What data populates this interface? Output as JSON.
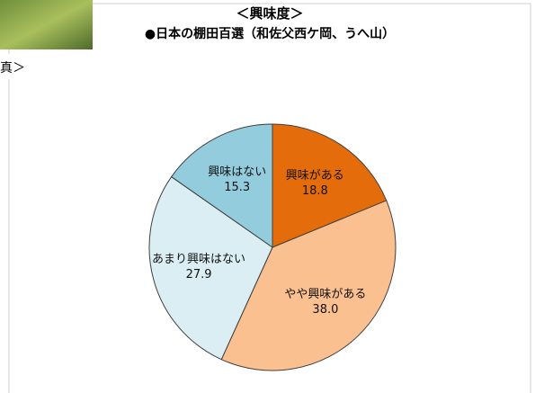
{
  "caption": "真＞",
  "chart_data": {
    "type": "pie",
    "title": "＜興味度＞",
    "subtitle": "●日本の棚田百選（和佐父西ケ岡、うへ山）",
    "categories": [
      "興味がある",
      "やや興味がある",
      "あまり興味はない",
      "興味はない"
    ],
    "values": [
      18.8,
      38.0,
      27.9,
      15.3
    ],
    "value_labels": [
      "18.8",
      "38.0",
      "27.9",
      "15.3"
    ],
    "colors": [
      "#e46c0a",
      "#fac090",
      "#dbeef4",
      "#93cddd"
    ]
  }
}
